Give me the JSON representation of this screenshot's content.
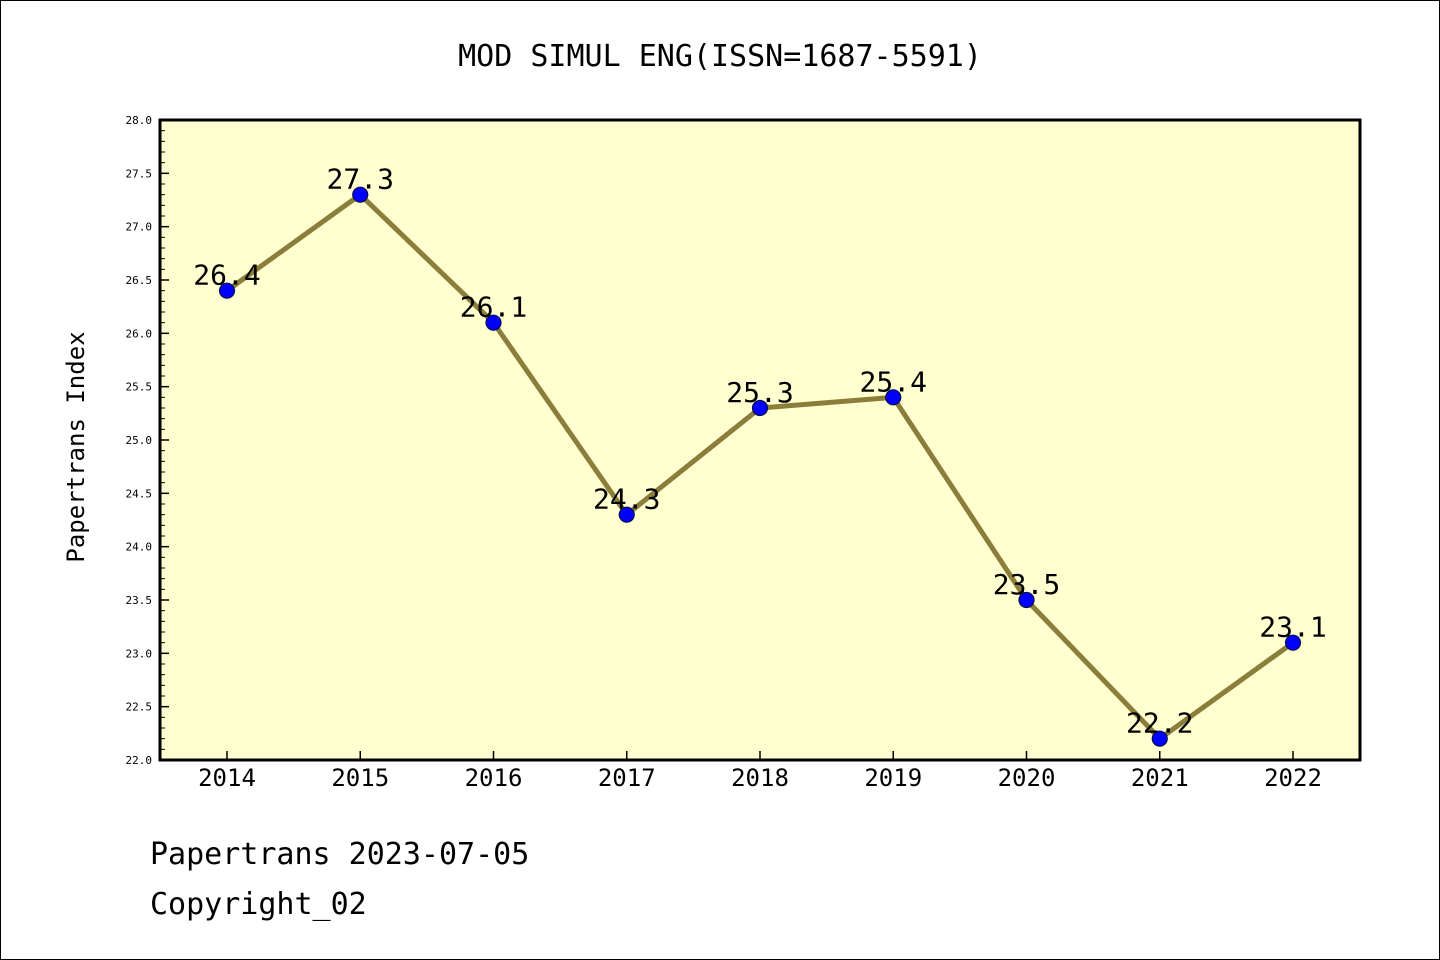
{
  "chart_data": {
    "type": "line",
    "title": "MOD SIMUL ENG(ISSN=1687-5591)",
    "xlabel": "",
    "ylabel": "Papertrans Index",
    "categories": [
      "2014",
      "2015",
      "2016",
      "2017",
      "2018",
      "2019",
      "2020",
      "2021",
      "2022"
    ],
    "series": [
      {
        "values": [
          26.4,
          27.3,
          26.1,
          24.3,
          25.3,
          25.4,
          23.5,
          22.2,
          23.1
        ],
        "labels": [
          "26.4",
          "27.3",
          "26.1",
          "24.3",
          "25.3",
          "25.4",
          "23.5",
          "22.2",
          "23.1"
        ]
      }
    ],
    "ylim": [
      22.0,
      28.0
    ],
    "yticks": [
      22.0,
      22.5,
      23.0,
      23.5,
      24.0,
      24.5,
      25.0,
      25.5,
      26.0,
      26.5,
      27.0,
      27.5,
      28.0
    ],
    "ytick_labels": [
      "22.0",
      "22.5",
      "23.0",
      "23.5",
      "24.0",
      "24.5",
      "25.0",
      "25.5",
      "26.0",
      "26.5",
      "27.0",
      "27.5",
      "28.0"
    ],
    "grid": false,
    "legend": "none"
  },
  "footer": {
    "line1": "Papertrans 2023-07-05",
    "line2": "Copyright_02"
  },
  "colors": {
    "plot_background": "#ffffd0",
    "line": "#8b7d3a",
    "marker_fill": "#0000ff",
    "marker_edge": "#0a0a50",
    "axis": "#000000",
    "text": "#000000"
  }
}
